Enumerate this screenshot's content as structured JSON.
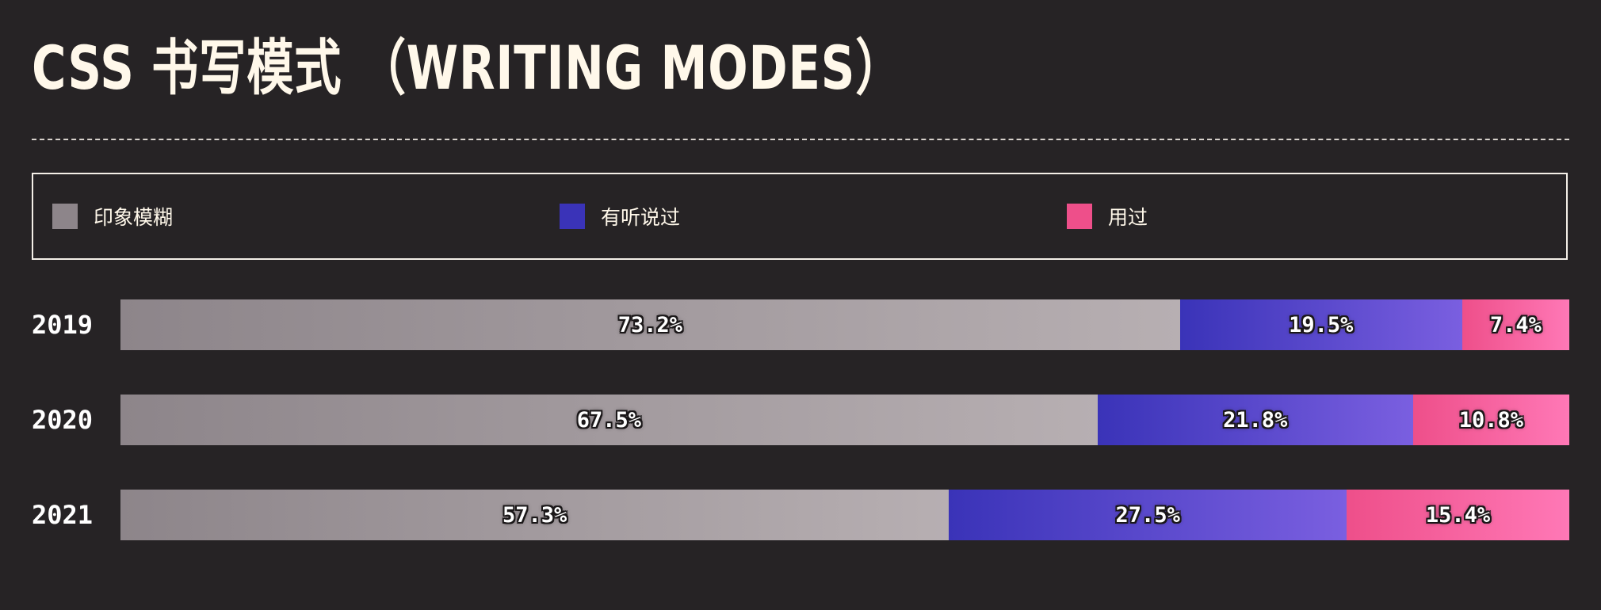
{
  "title": "CSS 书写模式 （WRITING MODES）",
  "colors": {
    "background": "#262325",
    "fuzzy": "#8d858a",
    "heard": "#3a33b8",
    "used": "#ee4f8a",
    "text": "#fff8ea"
  },
  "legend": [
    {
      "label": "印象模糊",
      "color": "#8d858a"
    },
    {
      "label": "有听说过",
      "color": "#3a33b8"
    },
    {
      "label": "用过",
      "color": "#ee4f8a"
    }
  ],
  "chart_data": {
    "type": "bar",
    "orientation": "horizontal",
    "stacked": true,
    "normalized": true,
    "title": "CSS 书写模式 （WRITING MODES）",
    "categories": [
      "2019",
      "2020",
      "2021"
    ],
    "series": [
      {
        "name": "印象模糊",
        "values": [
          73.2,
          67.5,
          57.3
        ],
        "labels": [
          "73.2%",
          "67.5%",
          "57.3%"
        ]
      },
      {
        "name": "有听说过",
        "values": [
          19.5,
          21.8,
          27.5
        ],
        "labels": [
          "19.5%",
          "21.8%",
          "27.5%"
        ]
      },
      {
        "name": "用过",
        "values": [
          7.4,
          10.8,
          15.4
        ],
        "labels": [
          "7.4%",
          "10.8%",
          "15.4%"
        ]
      }
    ],
    "legend_position": "top",
    "grid": false
  }
}
